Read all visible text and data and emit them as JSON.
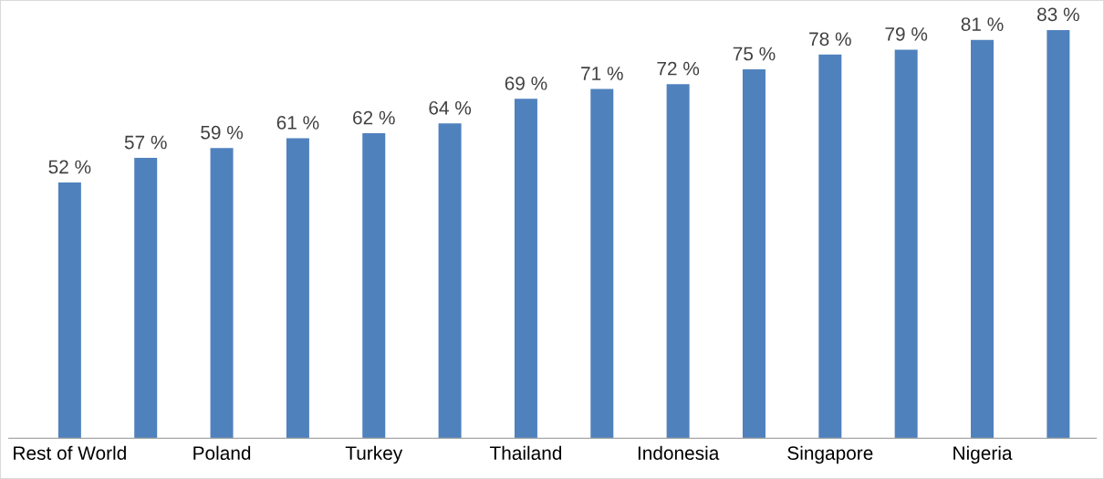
{
  "chart_data": {
    "type": "bar",
    "categories": [
      "Rest of World",
      null,
      "Poland",
      null,
      "Turkey",
      null,
      "Thailand",
      null,
      "Indonesia",
      null,
      "Singapore",
      null,
      "Nigeria",
      null
    ],
    "values": [
      52,
      57,
      59,
      61,
      62,
      64,
      69,
      71,
      72,
      75,
      78,
      79,
      81,
      83
    ],
    "value_labels": [
      "52 %",
      "57 %",
      "59 %",
      "61 %",
      "62 %",
      "64 %",
      "69 %",
      "71 %",
      "72 %",
      "75 %",
      "78 %",
      "79 %",
      "81 %",
      "83 %"
    ],
    "color": "#4f81bd",
    "grid": false,
    "legend": false
  }
}
